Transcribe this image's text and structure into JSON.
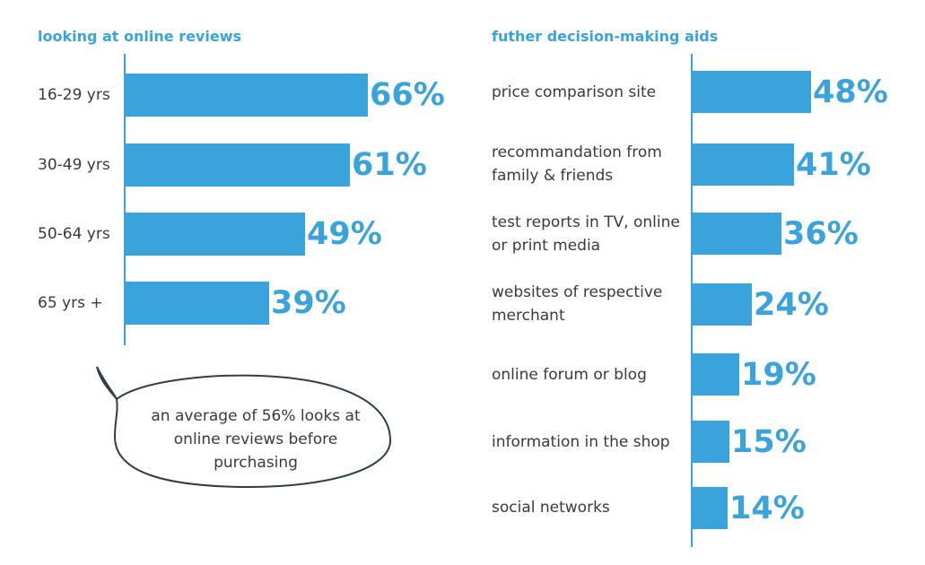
{
  "chart_data": [
    {
      "type": "bar",
      "orientation": "horizontal",
      "title": "looking at online reviews",
      "categories": [
        "16-29 yrs",
        "30-49 yrs",
        "50-64 yrs",
        "65 yrs +"
      ],
      "values": [
        66,
        61,
        49,
        39
      ],
      "value_labels": [
        "66%",
        "61%",
        "49%",
        "39%"
      ],
      "xlim": [
        0,
        66
      ],
      "color": "#3ba3dc"
    },
    {
      "type": "bar",
      "orientation": "horizontal",
      "title": "futher decision-making aids",
      "categories": [
        "price comparison site",
        "recommandation from family & friends",
        "test reports in TV, online or print media",
        "websites of respective merchant",
        "online forum or blog",
        "information in the shop",
        "social networks"
      ],
      "values": [
        48,
        41,
        36,
        24,
        19,
        15,
        14
      ],
      "value_labels": [
        "48%",
        "41%",
        "36%",
        "24%",
        "19%",
        "15%",
        "14%"
      ],
      "xlim": [
        0,
        48
      ],
      "color": "#3ba3dc"
    }
  ],
  "left_chart": {
    "categories": [
      "16-29 yrs",
      "30-49 yrs",
      "50-64 yrs",
      "65 yrs +"
    ]
  },
  "right_chart": {
    "category_lines": [
      [
        "price comparison site"
      ],
      [
        "recommandation from",
        "family & friends"
      ],
      [
        "test reports in TV, online",
        "or print media"
      ],
      [
        "websites of respective",
        "merchant"
      ],
      [
        "online forum or blog"
      ],
      [
        "information in the shop"
      ],
      [
        "social networks"
      ]
    ]
  },
  "callout": {
    "lines": [
      "an average of 56% looks at",
      "online reviews before",
      "purchasing"
    ]
  }
}
